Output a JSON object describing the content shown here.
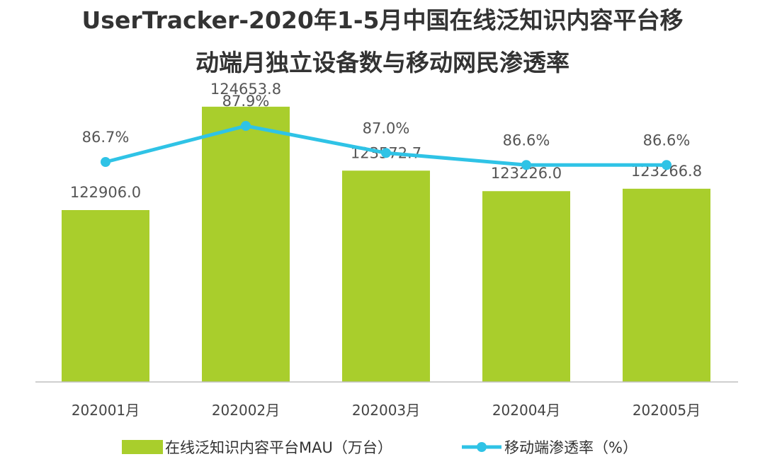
{
  "chart_data": {
    "type": "bar",
    "title_lines": [
      "UserTracker-2020年1-5月中国在线泛知识内容平台移",
      "动端月独立设备数与移动网民渗透率"
    ],
    "categories": [
      "202001月",
      "202002月",
      "202003月",
      "202004月",
      "202005月"
    ],
    "series": [
      {
        "name": "在线泛知识内容平台MAU（万台）",
        "type": "bar",
        "values": [
          122906.0,
          124653.8,
          123572.7,
          123226.0,
          123266.8
        ],
        "labels": [
          "122906.0",
          "124653.8",
          "123572.7",
          "123226.0",
          "123266.8"
        ],
        "color": "#a9ce2c"
      },
      {
        "name": "移动端渗透率（%）",
        "type": "line",
        "values": [
          86.7,
          87.9,
          87.0,
          86.6,
          86.6
        ],
        "labels": [
          "86.7%",
          "87.9%",
          "87.0%",
          "86.6%",
          "86.6%"
        ],
        "color": "#2fc3e6"
      }
    ],
    "grid": false,
    "legend_position": "bottom"
  }
}
